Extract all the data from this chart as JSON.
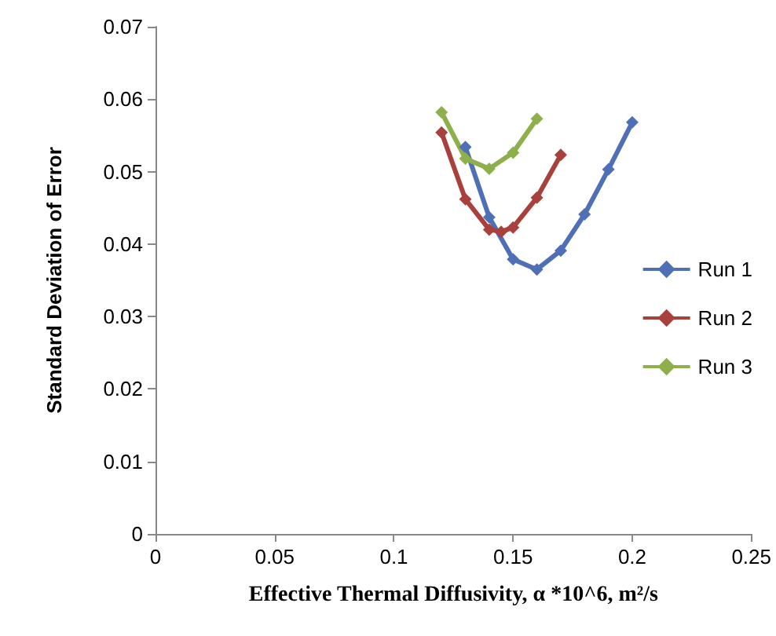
{
  "chart_data": {
    "type": "line",
    "xlabel": "Effective Thermal Diffusivity, α *10^6, m²/s",
    "ylabel": "Standard Deviation of Error",
    "xlim": [
      0,
      0.25
    ],
    "xticks": [
      0,
      0.05,
      0.1,
      0.15,
      0.2,
      0.25
    ],
    "ylim": [
      0,
      0.07
    ],
    "yticks": [
      0,
      0.01,
      0.02,
      0.03,
      0.04,
      0.05,
      0.06,
      0.07
    ],
    "grid": false,
    "legend": "right",
    "marker": "diamond",
    "line_style": "solid",
    "series": [
      {
        "name": "Run 1",
        "color": "#4f6fb6",
        "x": [
          0.13,
          0.14,
          0.15,
          0.16,
          0.17,
          0.18,
          0.19,
          0.2
        ],
        "values": [
          0.0534,
          0.0437,
          0.0379,
          0.0365,
          0.0391,
          0.0441,
          0.0503,
          0.0568
        ]
      },
      {
        "name": "Run 2",
        "color": "#a8403c",
        "x": [
          0.12,
          0.13,
          0.14,
          0.145,
          0.15,
          0.16,
          0.17
        ],
        "values": [
          0.0554,
          0.0462,
          0.042,
          0.0417,
          0.0423,
          0.0464,
          0.0523
        ]
      },
      {
        "name": "Run 3",
        "color": "#8db04a",
        "x": [
          0.12,
          0.13,
          0.14,
          0.15,
          0.16
        ],
        "values": [
          0.0582,
          0.0518,
          0.0504,
          0.0526,
          0.0573
        ]
      }
    ]
  }
}
